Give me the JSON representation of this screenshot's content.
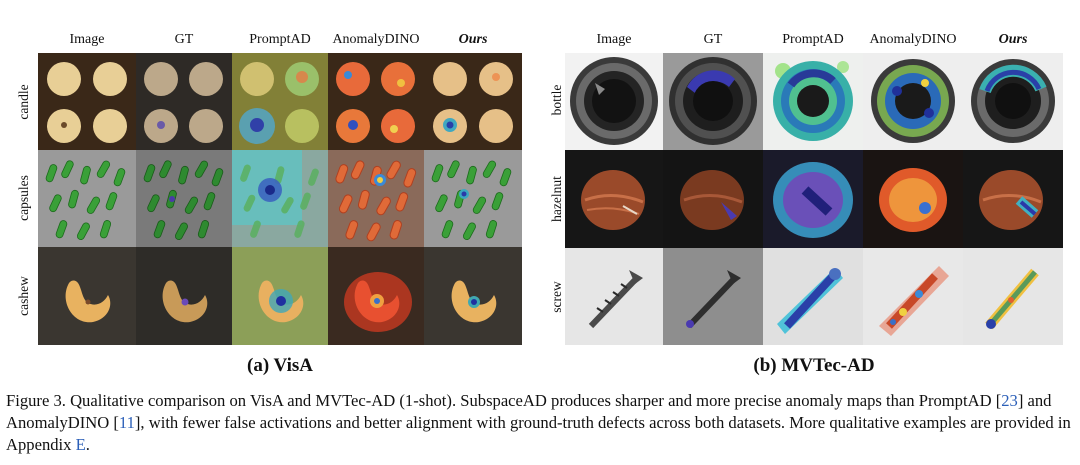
{
  "panel_a": {
    "columns": [
      "Image",
      "GT",
      "PromptAD",
      "AnomalyDINO",
      "Ours"
    ],
    "rows": [
      "candle",
      "capsules",
      "cashew"
    ],
    "subcaption": "(a) VisA"
  },
  "panel_b": {
    "columns": [
      "Image",
      "GT",
      "PromptAD",
      "AnomalyDINO",
      "Ours"
    ],
    "rows": [
      "bottle",
      "hazelnut",
      "screw"
    ],
    "subcaption": "(b) MVTec-AD"
  },
  "caption": {
    "text1": "Figure 3. Qualitative comparison on VisA and MVTec-AD (1-shot). SubspaceAD produces sharper and more precise anomaly maps than PromptAD [",
    "ref1": "23",
    "text2": "] and AnomalyDINO [",
    "ref2": "11",
    "text3": "], with fewer false activations and better alignment with ground-truth defects across both datasets. More qualitative examples are provided in Appendix ",
    "ref3": "E",
    "text4": "."
  },
  "colors": {
    "ref_link": "#2b5fb8",
    "heat_high": "#d8402a",
    "heat_mid": "#f0c040",
    "heat_low": "#2b7bd8"
  }
}
